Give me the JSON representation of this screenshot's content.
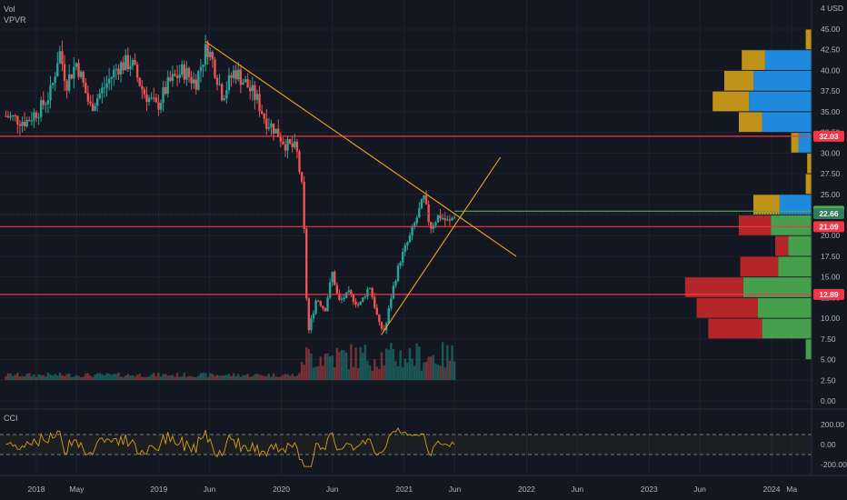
{
  "indicators": {
    "vol_label": "Vol",
    "vpvr_label": "VPVR",
    "cci_label": "CCI"
  },
  "currency": "4 USD",
  "colors": {
    "background": "#131722",
    "up": "#26a69a",
    "down": "#ef5350",
    "trendline": "#f7a21b",
    "level_line": "#f23645",
    "green_line": "#4caf50",
    "vp_up": "#4caf50",
    "vp_down": "#c62828",
    "vp_value_up": "#2196f3",
    "vp_value_down": "#d4a017",
    "cci_line": "#d4a017"
  },
  "chart_data": {
    "type": "candlestick",
    "price_axis": {
      "ticks": [
        "45.00",
        "42.50",
        "40.00",
        "37.50",
        "35.00",
        "32.50",
        "30.00",
        "27.50",
        "25.00",
        "22.50",
        "20.00",
        "17.50",
        "15.00",
        "12.50",
        "10.00",
        "7.50",
        "5.00",
        "2.50",
        "0.00"
      ],
      "range": [
        0,
        46
      ]
    },
    "cci_axis": {
      "ticks": [
        "200.00",
        "0.00",
        "-200.00"
      ],
      "bands": [
        100,
        -100
      ]
    },
    "time_axis": {
      "labels": [
        "2018",
        "May",
        "2019",
        "Jun",
        "2020",
        "Jun",
        "2021",
        "Jun",
        "2022",
        "Jun",
        "2023",
        "Jun",
        "2024",
        "Ma"
      ],
      "dates": [
        "2018-01-01",
        "2018-05-01",
        "2019-01-01",
        "2019-06-01",
        "2020-01-01",
        "2020-06-01",
        "2021-01-01",
        "2021-06-01",
        "2022-01-01",
        "2022-06-01",
        "2023-01-01",
        "2023-06-01",
        "2024-01-01",
        "2024-03-01"
      ]
    },
    "price_path": [
      [
        "2017-10-01",
        34.5
      ],
      [
        "2017-12-01",
        33.8
      ],
      [
        "2018-01-15",
        35.5
      ],
      [
        "2018-02-15",
        37.5
      ],
      [
        "2018-03-10",
        42.5
      ],
      [
        "2018-04-01",
        38.5
      ],
      [
        "2018-05-01",
        41.0
      ],
      [
        "2018-06-10",
        35.5
      ],
      [
        "2018-07-15",
        37.5
      ],
      [
        "2018-09-01",
        40.5
      ],
      [
        "2018-10-10",
        41.0
      ],
      [
        "2018-11-15",
        37.5
      ],
      [
        "2018-12-25",
        35.5
      ],
      [
        "2019-02-01",
        38.5
      ],
      [
        "2019-03-15",
        40.0
      ],
      [
        "2019-04-20",
        38.5
      ],
      [
        "2019-05-25",
        43.0
      ],
      [
        "2019-06-15",
        40.5
      ],
      [
        "2019-07-10",
        37.0
      ],
      [
        "2019-08-15",
        40.0
      ],
      [
        "2019-09-15",
        38.5
      ],
      [
        "2019-10-20",
        36.5
      ],
      [
        "2019-11-15",
        34.0
      ],
      [
        "2019-12-10",
        33.0
      ],
      [
        "2020-01-15",
        31.0
      ],
      [
        "2020-02-15",
        30.5
      ],
      [
        "2020-03-05",
        25.0
      ],
      [
        "2020-03-20",
        8.0
      ],
      [
        "2020-04-15",
        12.5
      ],
      [
        "2020-05-10",
        11.0
      ],
      [
        "2020-06-01",
        15.5
      ],
      [
        "2020-06-20",
        12.0
      ],
      [
        "2020-07-20",
        13.0
      ],
      [
        "2020-08-20",
        11.5
      ],
      [
        "2020-09-20",
        14.0
      ],
      [
        "2020-10-20",
        9.0
      ],
      [
        "2020-11-05",
        8.5
      ],
      [
        "2020-11-25",
        13.0
      ],
      [
        "2020-12-20",
        17.0
      ],
      [
        "2021-01-20",
        20.0
      ],
      [
        "2021-02-15",
        23.0
      ],
      [
        "2021-03-01",
        24.5
      ],
      [
        "2021-03-20",
        21.0
      ],
      [
        "2021-04-15",
        22.5
      ],
      [
        "2021-05-15",
        21.5
      ],
      [
        "2021-06-01",
        22.66
      ]
    ],
    "horizontal_levels": [
      {
        "value": 32.03,
        "label": "32.03",
        "color": "#f23645"
      },
      {
        "value": 21.09,
        "label": "21.09",
        "color": "#f23645"
      },
      {
        "value": 12.89,
        "label": "12.89",
        "color": "#f23645"
      },
      {
        "value": 22.96,
        "label": "22.96",
        "color": "#4caf50"
      }
    ],
    "last_price": {
      "value": 22.66,
      "label": "22.66"
    },
    "trendlines": [
      {
        "from": [
          "2019-05-20",
          43.5
        ],
        "to": [
          "2021-12-01",
          17.5
        ]
      },
      {
        "from": [
          "2020-10-25",
          8.0
        ],
        "to": [
          "2021-10-15",
          29.5
        ]
      }
    ],
    "volume_profile": {
      "rows": [
        {
          "price": 43.75,
          "up": 0.0,
          "down": 0.4
        },
        {
          "price": 41.25,
          "up": 3.2,
          "down": 1.6
        },
        {
          "price": 38.75,
          "up": 4.0,
          "down": 2.0
        },
        {
          "price": 36.25,
          "up": 4.3,
          "down": 2.5
        },
        {
          "price": 33.75,
          "up": 3.4,
          "down": 1.6
        },
        {
          "price": 31.25,
          "up": 0.9,
          "down": 0.5
        },
        {
          "price": 28.75,
          "up": 0.0,
          "down": 0.3
        },
        {
          "price": 26.25,
          "up": 0.0,
          "down": 0.4
        },
        {
          "price": 23.75,
          "up": 2.2,
          "down": 1.8
        },
        {
          "price": 21.25,
          "up": 2.8,
          "down": 2.2
        },
        {
          "price": 18.75,
          "up": 1.6,
          "down": 0.9
        },
        {
          "price": 16.25,
          "up": 2.3,
          "down": 2.6
        },
        {
          "price": 13.75,
          "up": 4.7,
          "down": 4.0
        },
        {
          "price": 11.25,
          "up": 3.7,
          "down": 4.2
        },
        {
          "price": 8.75,
          "up": 3.4,
          "down": 3.7
        },
        {
          "price": 6.25,
          "up": 0.4,
          "down": 0.0
        }
      ],
      "value_area_max_price": 45
    }
  }
}
